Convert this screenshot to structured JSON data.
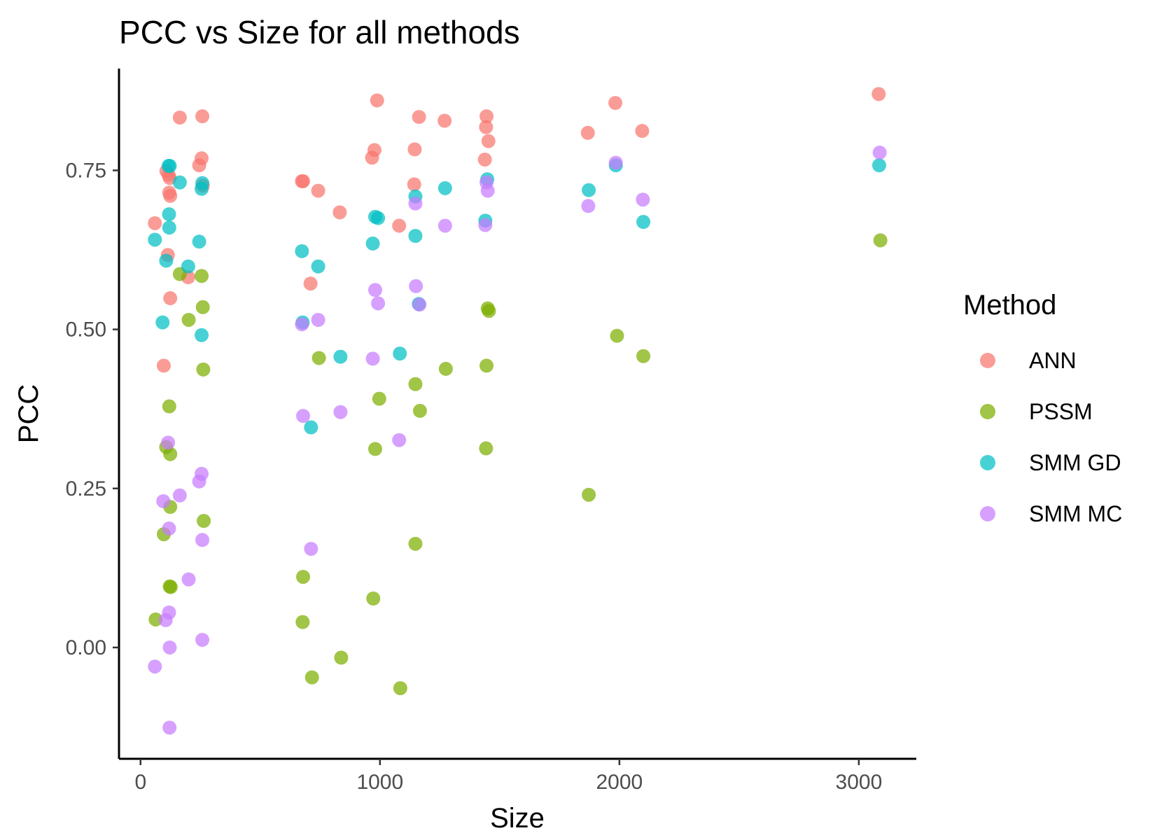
{
  "chart_data": {
    "type": "scatter",
    "title": "PCC vs Size for all methods",
    "xlabel": "Size",
    "ylabel": "PCC",
    "xlim": [
      -90,
      3240
    ],
    "ylim": [
      -0.175,
      0.91
    ],
    "xticks": [
      0,
      1000,
      2000,
      3000
    ],
    "xtick_labels": [
      "0",
      "1000",
      "2000",
      "3000"
    ],
    "yticks": [
      0.0,
      0.25,
      0.5,
      0.75
    ],
    "ytick_labels": [
      "0.00",
      "0.25",
      "0.50",
      "0.75"
    ],
    "grid": false,
    "legend": {
      "title": "Method",
      "placement": "right"
    },
    "series": [
      {
        "name": "ANN",
        "color": "#F8766D",
        "points": [
          [
            60,
            0.667
          ],
          [
            97,
            0.443
          ],
          [
            108,
            0.749
          ],
          [
            114,
            0.617
          ],
          [
            117,
            0.743
          ],
          [
            120,
            0.715
          ],
          [
            122,
            0.738
          ],
          [
            124,
            0.71
          ],
          [
            124,
            0.549
          ],
          [
            164,
            0.833
          ],
          [
            199,
            0.582
          ],
          [
            245,
            0.758
          ],
          [
            255,
            0.769
          ],
          [
            258,
            0.835
          ],
          [
            260,
            0.726
          ],
          [
            674,
            0.733
          ],
          [
            679,
            0.733
          ],
          [
            710,
            0.572
          ],
          [
            742,
            0.718
          ],
          [
            832,
            0.684
          ],
          [
            967,
            0.77
          ],
          [
            977,
            0.782
          ],
          [
            988,
            0.86
          ],
          [
            1080,
            0.663
          ],
          [
            1143,
            0.728
          ],
          [
            1145,
            0.783
          ],
          [
            1163,
            0.834
          ],
          [
            1270,
            0.828
          ],
          [
            1438,
            0.767
          ],
          [
            1443,
            0.818
          ],
          [
            1445,
            0.835
          ],
          [
            1453,
            0.796
          ],
          [
            1868,
            0.809
          ],
          [
            1983,
            0.856
          ],
          [
            2095,
            0.812
          ],
          [
            3083,
            0.87
          ]
        ]
      },
      {
        "name": "PSSM",
        "color": "#7CAE00",
        "points": [
          [
            63,
            0.044
          ],
          [
            97,
            0.178
          ],
          [
            107,
            0.315
          ],
          [
            120,
            0.379
          ],
          [
            122,
            0.096
          ],
          [
            124,
            0.304
          ],
          [
            124,
            0.221
          ],
          [
            126,
            0.095
          ],
          [
            164,
            0.587
          ],
          [
            201,
            0.515
          ],
          [
            255,
            0.584
          ],
          [
            260,
            0.535
          ],
          [
            262,
            0.437
          ],
          [
            264,
            0.199
          ],
          [
            679,
            0.111
          ],
          [
            677,
            0.04
          ],
          [
            716,
            -0.047
          ],
          [
            745,
            0.455
          ],
          [
            838,
            -0.016
          ],
          [
            972,
            0.077
          ],
          [
            980,
            0.312
          ],
          [
            997,
            0.391
          ],
          [
            1085,
            -0.064
          ],
          [
            1148,
            0.414
          ],
          [
            1148,
            0.163
          ],
          [
            1167,
            0.372
          ],
          [
            1275,
            0.438
          ],
          [
            1443,
            0.313
          ],
          [
            1445,
            0.443
          ],
          [
            1450,
            0.533
          ],
          [
            1455,
            0.529
          ],
          [
            1872,
            0.24
          ],
          [
            1990,
            0.49
          ],
          [
            2100,
            0.458
          ],
          [
            3090,
            0.64
          ]
        ]
      },
      {
        "name": "SMM GD",
        "color": "#00BFC4",
        "points": [
          [
            60,
            0.641
          ],
          [
            92,
            0.511
          ],
          [
            107,
            0.608
          ],
          [
            117,
            0.757
          ],
          [
            119,
            0.681
          ],
          [
            120,
            0.66
          ],
          [
            122,
            0.757
          ],
          [
            164,
            0.731
          ],
          [
            199,
            0.599
          ],
          [
            245,
            0.638
          ],
          [
            255,
            0.491
          ],
          [
            255,
            0.721
          ],
          [
            258,
            0.73
          ],
          [
            674,
            0.623
          ],
          [
            677,
            0.511
          ],
          [
            712,
            0.346
          ],
          [
            742,
            0.599
          ],
          [
            835,
            0.457
          ],
          [
            970,
            0.635
          ],
          [
            980,
            0.677
          ],
          [
            992,
            0.675
          ],
          [
            1083,
            0.462
          ],
          [
            1148,
            0.709
          ],
          [
            1148,
            0.647
          ],
          [
            1162,
            0.54
          ],
          [
            1272,
            0.722
          ],
          [
            1440,
            0.671
          ],
          [
            1448,
            0.736
          ],
          [
            1872,
            0.719
          ],
          [
            1985,
            0.758
          ],
          [
            2100,
            0.669
          ],
          [
            3085,
            0.758
          ]
        ]
      },
      {
        "name": "SMM MC",
        "color": "#C77CFF",
        "points": [
          [
            60,
            -0.03
          ],
          [
            95,
            0.23
          ],
          [
            105,
            0.043
          ],
          [
            115,
            0.322
          ],
          [
            119,
            0.187
          ],
          [
            119,
            0.055
          ],
          [
            121,
            -0.126
          ],
          [
            122,
            0.0
          ],
          [
            164,
            0.239
          ],
          [
            201,
            0.107
          ],
          [
            245,
            0.261
          ],
          [
            255,
            0.273
          ],
          [
            258,
            0.169
          ],
          [
            258,
            0.012
          ],
          [
            674,
            0.508
          ],
          [
            679,
            0.364
          ],
          [
            712,
            0.155
          ],
          [
            742,
            0.515
          ],
          [
            835,
            0.37
          ],
          [
            970,
            0.454
          ],
          [
            980,
            0.562
          ],
          [
            992,
            0.541
          ],
          [
            1080,
            0.326
          ],
          [
            1148,
            0.698
          ],
          [
            1150,
            0.568
          ],
          [
            1165,
            0.539
          ],
          [
            1272,
            0.663
          ],
          [
            1440,
            0.664
          ],
          [
            1445,
            0.731
          ],
          [
            1450,
            0.718
          ],
          [
            1870,
            0.694
          ],
          [
            1985,
            0.762
          ],
          [
            2098,
            0.704
          ],
          [
            3087,
            0.778
          ]
        ]
      }
    ]
  }
}
